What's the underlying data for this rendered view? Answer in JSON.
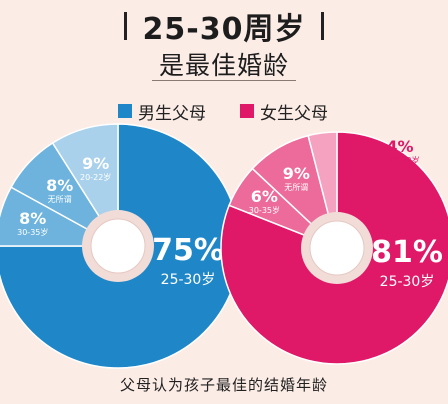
{
  "header": {
    "title": "25-30周岁",
    "subtitle": "是最佳婚龄"
  },
  "footer": "父母认为孩子最佳的结婚年龄",
  "colors": {
    "male": "#1f87c8",
    "male_mid": "#6db3dd",
    "male_light": "#a9d1ec",
    "female": "#df1868",
    "female_mid": "#ec6b9a",
    "female_light": "#f4a2c0",
    "ring": "#f1dcd8"
  },
  "chart_data": [
    {
      "type": "pie",
      "name": "男生父母",
      "categories": [
        "25-30岁",
        "30-35岁",
        "无所谓",
        "20-22岁"
      ],
      "values": [
        75,
        8,
        8,
        9
      ],
      "value_labels": [
        "75%",
        "8%",
        "8%",
        "9%"
      ],
      "label_sub": [
        "25-30岁",
        "30-35岁",
        "无所谓",
        "20-22岁"
      ]
    },
    {
      "type": "pie",
      "name": "女生父母",
      "categories": [
        "25-30岁",
        "30-35岁",
        "无所谓",
        "20-22岁"
      ],
      "values": [
        81,
        6,
        9,
        4
      ],
      "value_labels": [
        "81%",
        "6%",
        "9%",
        "4%"
      ],
      "label_sub": [
        "25-30岁",
        "30-35岁",
        "无所谓",
        "20-22岁"
      ]
    }
  ]
}
